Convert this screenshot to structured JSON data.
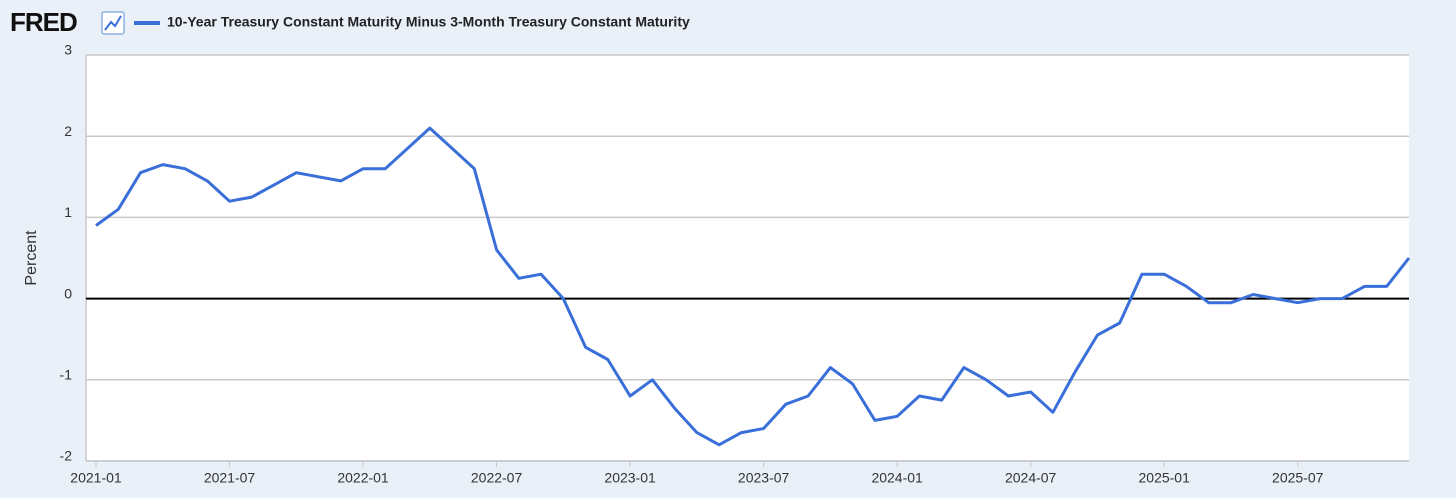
{
  "chart_data": {
    "type": "line",
    "logo": "FRED",
    "title": "10-Year Treasury Constant Maturity Minus 3-Month Treasury Constant Maturity",
    "y_label": "Percent",
    "x": [
      "2021-01",
      "2021-02",
      "2021-03",
      "2021-04",
      "2021-05",
      "2021-06",
      "2021-07",
      "2021-08",
      "2021-09",
      "2021-10",
      "2021-11",
      "2021-12",
      "2022-01",
      "2022-02",
      "2022-03",
      "2022-04",
      "2022-05",
      "2022-06",
      "2022-07",
      "2022-08",
      "2022-09",
      "2022-10",
      "2022-11",
      "2022-12",
      "2023-01",
      "2023-02",
      "2023-03",
      "2023-04",
      "2023-05",
      "2023-06",
      "2023-07",
      "2023-08",
      "2023-09",
      "2023-10",
      "2023-11",
      "2023-12",
      "2024-01",
      "2024-02",
      "2024-03",
      "2024-04",
      "2024-05",
      "2024-06",
      "2024-07",
      "2024-08",
      "2024-09",
      "2024-10",
      "2024-11",
      "2024-12",
      "2025-01",
      "2025-02",
      "2025-03",
      "2025-04",
      "2025-05",
      "2025-06",
      "2025-07",
      "2025-08",
      "2025-09",
      "2025-10",
      "2025-11",
      "2025-12"
    ],
    "series": [
      {
        "name": "10-Year Treasury Constant Maturity Minus 3-Month Treasury Constant Maturity",
        "color": "#3a6fd9",
        "values": [
          0.9,
          1.1,
          1.55,
          1.65,
          1.6,
          1.45,
          1.2,
          1.25,
          1.4,
          1.55,
          1.5,
          1.45,
          1.6,
          1.6,
          1.85,
          2.1,
          1.85,
          1.6,
          0.6,
          0.25,
          0.3,
          0.0,
          -0.6,
          -0.75,
          -1.2,
          -1.0,
          -1.35,
          -1.65,
          -1.8,
          -1.65,
          -1.6,
          -1.3,
          -1.2,
          -0.85,
          -1.05,
          -1.5,
          -1.45,
          -1.2,
          -1.25,
          -0.85,
          -1.0,
          -1.2,
          -1.15,
          -1.4,
          -0.9,
          -0.45,
          -0.3,
          0.3,
          0.3,
          0.15,
          -0.05,
          -0.05,
          0.05,
          0.0,
          -0.05,
          0.0,
          0.0,
          0.15,
          0.15,
          0.5
        ]
      }
    ],
    "xlim": [
      "2021-01",
      "2025-12"
    ],
    "xticks": [
      "2021-01",
      "2021-07",
      "2022-01",
      "2022-07",
      "2023-01",
      "2023-07",
      "2024-01",
      "2024-07",
      "2025-01",
      "2025-07"
    ],
    "ylim": [
      -2,
      3
    ],
    "yticks": [
      -2,
      -1,
      0,
      1,
      2,
      3
    ],
    "grid": true,
    "zero_line": true
  }
}
